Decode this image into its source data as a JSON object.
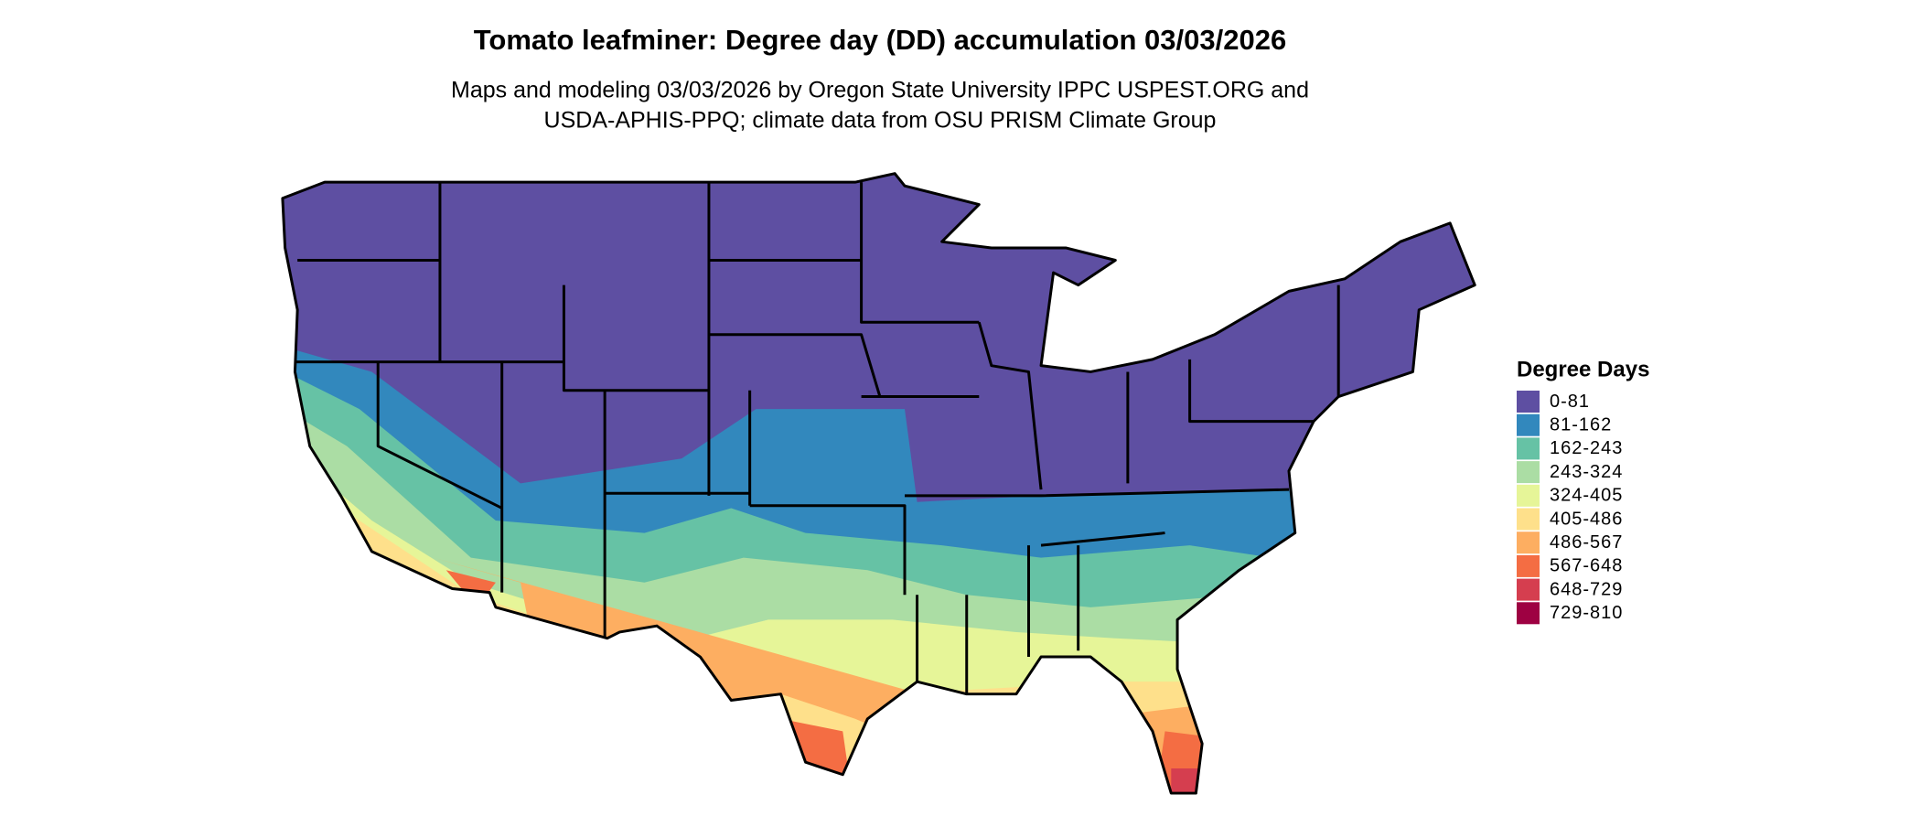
{
  "header": {
    "title": "Tomato leafminer: Degree day (DD) accumulation 03/03/2026",
    "subtitle": [
      "Maps and modeling 03/03/2026 by Oregon State University IPPC USPEST.ORG and",
      "USDA-APHIS-PPQ; climate data from OSU PRISM Climate Group"
    ]
  },
  "legend": {
    "title": "Degree Days",
    "items": [
      {
        "label": "0-81",
        "color": "#5e4fa2"
      },
      {
        "label": "81-162",
        "color": "#3288bd"
      },
      {
        "label": "162-243",
        "color": "#66c2a5"
      },
      {
        "label": "243-324",
        "color": "#abdda4"
      },
      {
        "label": "324-405",
        "color": "#e6f598"
      },
      {
        "label": "405-486",
        "color": "#fee08b"
      },
      {
        "label": "486-567",
        "color": "#fdae61"
      },
      {
        "label": "567-648",
        "color": "#f46d43"
      },
      {
        "label": "648-729",
        "color": "#d53e4f"
      },
      {
        "label": "729-810",
        "color": "#9e0142"
      }
    ]
  }
}
